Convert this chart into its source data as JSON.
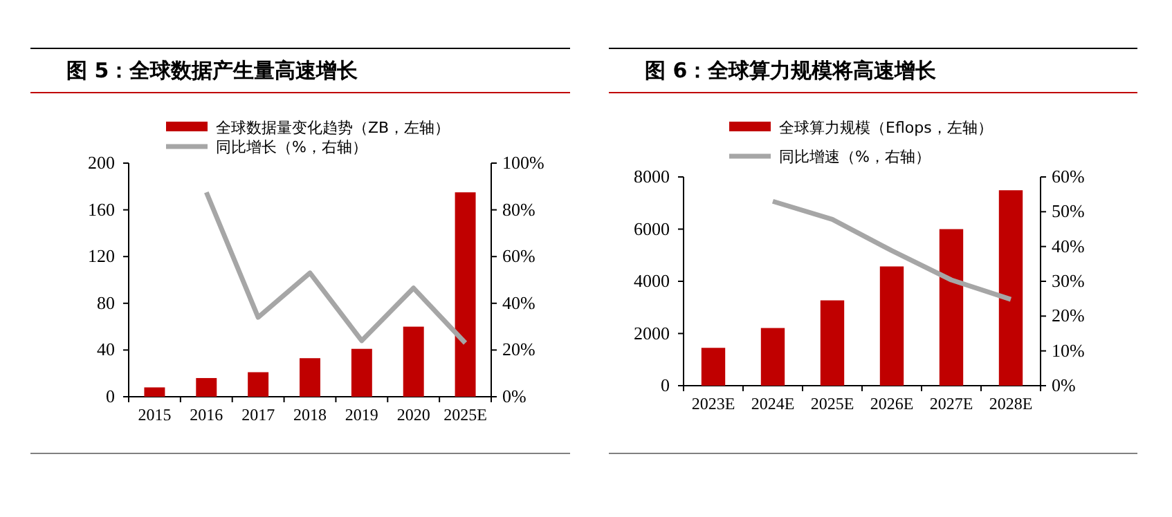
{
  "chart_data": [
    {
      "type": "bar",
      "title": "图 5：全球数据产生量高速增长",
      "categories": [
        "2015",
        "2016",
        "2017",
        "2018",
        "2019",
        "2020",
        "2025E"
      ],
      "series": [
        {
          "name": "全球数据量变化趋势（ZB，左轴）",
          "color": "#c00000",
          "values": [
            8,
            16,
            21,
            33,
            41,
            60,
            175
          ]
        },
        {
          "name": "同比增长（%，右轴）",
          "type": "line",
          "axis": "y2",
          "color": "#a6a6a6",
          "values": [
            null,
            87.5,
            34,
            53,
            24,
            46.5,
            23
          ]
        }
      ],
      "ylim": [
        0,
        200
      ],
      "yticks": [
        0,
        40,
        80,
        120,
        160,
        200
      ],
      "y2lim": [
        0,
        100
      ],
      "y2ticks": [
        {
          "value": 0,
          "label": "0%"
        },
        {
          "value": 20,
          "label": "20%"
        },
        {
          "value": 40,
          "label": "40%"
        },
        {
          "value": 60,
          "label": "60%"
        },
        {
          "value": 80,
          "label": "80%"
        },
        {
          "value": 100,
          "label": "100%"
        }
      ],
      "legend": "top"
    },
    {
      "type": "bar",
      "title": "图 6：全球算力规模将高速增长",
      "categories": [
        "2023E",
        "2024E",
        "2025E",
        "2026E",
        "2027E",
        "2028E"
      ],
      "series": [
        {
          "name": "全球算力规模（Eflops，左轴）",
          "color": "#c00000",
          "values": [
            1450,
            2210,
            3270,
            4570,
            6000,
            7490
          ]
        },
        {
          "name": "同比增速（%，右轴）",
          "type": "line",
          "axis": "y2",
          "color": "#a6a6a6",
          "values": [
            null,
            53,
            47.8,
            38.8,
            30.4,
            24.8
          ]
        }
      ],
      "ylim": [
        0,
        8000
      ],
      "yticks": [
        0,
        2000,
        4000,
        6000,
        8000
      ],
      "y2lim": [
        0,
        60
      ],
      "y2ticks": [
        {
          "value": 0,
          "label": "0%"
        },
        {
          "value": 10,
          "label": "10%"
        },
        {
          "value": 20,
          "label": "20%"
        },
        {
          "value": 30,
          "label": "30%"
        },
        {
          "value": 40,
          "label": "40%"
        },
        {
          "value": 50,
          "label": "50%"
        },
        {
          "value": 60,
          "label": "60%"
        }
      ],
      "legend": "top"
    }
  ]
}
